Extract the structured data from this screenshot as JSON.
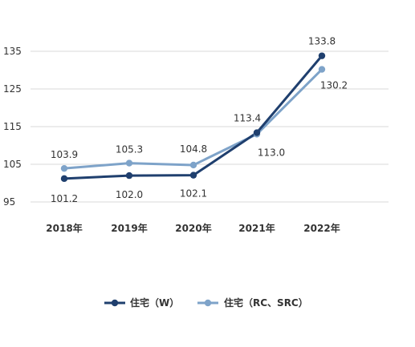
{
  "chart_data": {
    "type": "line",
    "categories": [
      "2018年",
      "2019年",
      "2020年",
      "2021年",
      "2022年"
    ],
    "ylim": [
      95,
      140
    ],
    "yticks": [
      95,
      105,
      115,
      125,
      135
    ],
    "grid": true,
    "legend_position": "bottom",
    "series": [
      {
        "name": "住宅（W）",
        "color": "#1f3f6e",
        "values": [
          101.2,
          102.0,
          102.1,
          113.4,
          133.8
        ],
        "labels": [
          "101.2",
          "102.0",
          "102.1",
          "113.4",
          "133.8"
        ]
      },
      {
        "name": "住宅（RC、SRC）",
        "color": "#7ea3c9",
        "values": [
          103.9,
          105.3,
          104.8,
          113.0,
          130.2
        ],
        "labels": [
          "103.9",
          "105.3",
          "104.8",
          "113.0",
          "130.2"
        ]
      }
    ]
  }
}
